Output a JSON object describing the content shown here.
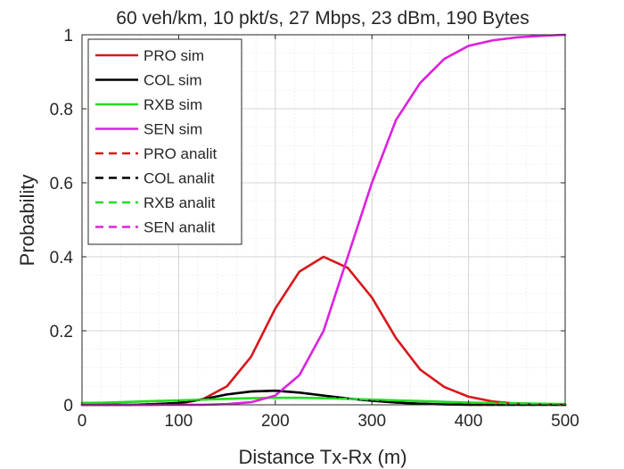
{
  "chart_data": {
    "type": "line",
    "title": "60 veh/km, 10 pkt/s, 27 Mbps, 23 dBm, 190 Bytes",
    "xlabel": "Distance Tx-Rx (m)",
    "ylabel": "Probability",
    "xlim": [
      0,
      500
    ],
    "ylim": [
      0,
      1
    ],
    "xticks": [
      0,
      100,
      200,
      300,
      400,
      500
    ],
    "xtick_labels": [
      "0",
      "100",
      "200",
      "300",
      "400",
      "500"
    ],
    "yticks": [
      0,
      0.2,
      0.4,
      0.6,
      0.8,
      1
    ],
    "ytick_labels": [
      "0",
      "0.2",
      "0.4",
      "0.6",
      "0.8",
      "1"
    ],
    "grid": true,
    "minor_grid": true,
    "legend_position": "top-left",
    "x": [
      0,
      25,
      50,
      75,
      100,
      125,
      150,
      175,
      200,
      225,
      250,
      275,
      300,
      325,
      350,
      375,
      400,
      425,
      450,
      475,
      500
    ],
    "series": [
      {
        "name": "PRO sim",
        "color": "#d7191c",
        "style": "solid",
        "values": [
          0,
          0,
          0,
          0,
          0.003,
          0.015,
          0.05,
          0.13,
          0.26,
          0.36,
          0.4,
          0.37,
          0.29,
          0.18,
          0.095,
          0.048,
          0.022,
          0.009,
          0.003,
          0.001,
          0
        ]
      },
      {
        "name": "COL sim",
        "color": "#000000",
        "style": "solid",
        "values": [
          0,
          0,
          0,
          0.002,
          0.005,
          0.015,
          0.028,
          0.036,
          0.038,
          0.033,
          0.025,
          0.017,
          0.011,
          0.006,
          0.003,
          0.001,
          0,
          0,
          0,
          0,
          0
        ]
      },
      {
        "name": "RXB sim",
        "color": "#22dd22",
        "style": "solid",
        "values": [
          0.005,
          0.006,
          0.008,
          0.01,
          0.012,
          0.014,
          0.016,
          0.018,
          0.019,
          0.019,
          0.018,
          0.016,
          0.014,
          0.012,
          0.01,
          0.008,
          0.006,
          0.005,
          0.004,
          0.003,
          0.002
        ]
      },
      {
        "name": "SEN sim",
        "color": "#dd22dd",
        "style": "solid",
        "values": [
          0,
          0,
          0,
          0,
          0,
          0,
          0.002,
          0.007,
          0.025,
          0.08,
          0.2,
          0.4,
          0.6,
          0.77,
          0.87,
          0.935,
          0.97,
          0.985,
          0.993,
          0.997,
          1.0
        ]
      },
      {
        "name": "PRO analit",
        "color": "#d7191c",
        "style": "dashed",
        "values": [
          0,
          0,
          0,
          0,
          0.003,
          0.015,
          0.05,
          0.13,
          0.26,
          0.36,
          0.4,
          0.37,
          0.29,
          0.18,
          0.095,
          0.048,
          0.022,
          0.009,
          0.003,
          0.001,
          0
        ]
      },
      {
        "name": "COL analit",
        "color": "#000000",
        "style": "dashed",
        "values": [
          0,
          0,
          0,
          0.002,
          0.005,
          0.015,
          0.028,
          0.036,
          0.038,
          0.033,
          0.025,
          0.017,
          0.011,
          0.006,
          0.003,
          0.001,
          0,
          0,
          0,
          0,
          0
        ]
      },
      {
        "name": "RXB analit",
        "color": "#22dd22",
        "style": "dashed",
        "values": [
          0.005,
          0.006,
          0.008,
          0.01,
          0.012,
          0.014,
          0.016,
          0.018,
          0.019,
          0.019,
          0.018,
          0.016,
          0.014,
          0.012,
          0.01,
          0.008,
          0.006,
          0.005,
          0.004,
          0.003,
          0.002
        ]
      },
      {
        "name": "SEN analit",
        "color": "#dd22dd",
        "style": "dashed",
        "values": [
          0,
          0,
          0,
          0,
          0,
          0,
          0.002,
          0.007,
          0.025,
          0.08,
          0.2,
          0.4,
          0.6,
          0.77,
          0.87,
          0.935,
          0.97,
          0.985,
          0.993,
          0.997,
          1.0
        ]
      }
    ]
  }
}
